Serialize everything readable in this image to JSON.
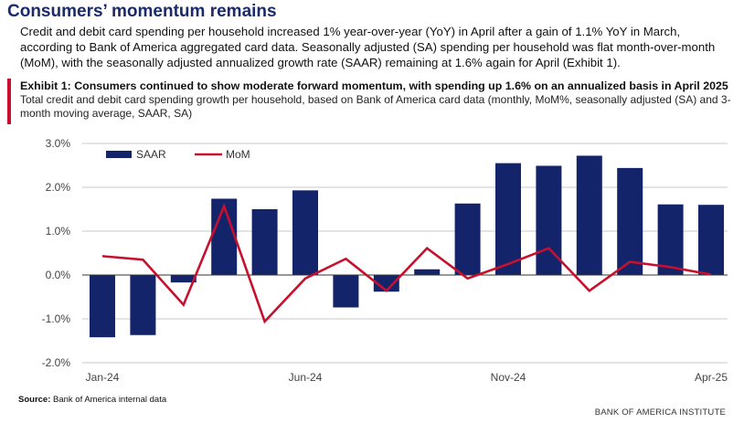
{
  "headline": "Consumers’ momentum remains",
  "intro": "Credit and debit card spending per household increased 1% year-over-year (YoY) in April after a gain of 1.1% YoY in March, according to Bank of America aggregated card data. Seasonally adjusted (SA) spending per household was flat month-over-month (MoM), with the seasonally adjusted annualized growth rate (SAAR) remaining at 1.6% again for April (Exhibit 1).",
  "exhibit": {
    "title": "Exhibit 1: Consumers continued to show moderate forward momentum, with spending up 1.6% on an annualized basis in April 2025",
    "subtitle": "Total credit and debit card spending growth per household, based on Bank of America card data (monthly, MoM%, seasonally adjusted (SA) and 3-month moving average, SAAR, SA)"
  },
  "source": {
    "label": "Source:",
    "text": " Bank of America internal data"
  },
  "brand": "BANK OF AMERICA INSTITUTE",
  "colors": {
    "saar": "#14246b",
    "mom": "#c8102e",
    "accent": "#c8102e",
    "headline": "#1b2a6b"
  },
  "chart_data": {
    "type": "bar",
    "categories": [
      "Jan-24",
      "Feb-24",
      "Mar-24",
      "Apr-24",
      "May-24",
      "Jun-24",
      "Jul-24",
      "Aug-24",
      "Sep-24",
      "Oct-24",
      "Nov-24",
      "Dec-24",
      "Jan-25",
      "Feb-25",
      "Mar-25",
      "Apr-25"
    ],
    "tick_labels": [
      "Jan-24",
      "Jun-24",
      "Nov-24",
      "Apr-25"
    ],
    "series": [
      {
        "name": "SAAR",
        "type": "bar",
        "color": "#14246b",
        "values": [
          -1.42,
          -1.37,
          -0.17,
          1.74,
          1.5,
          1.93,
          -0.74,
          -0.38,
          0.13,
          1.63,
          2.55,
          2.49,
          2.72,
          2.44,
          1.61,
          1.6
        ]
      },
      {
        "name": "MoM",
        "type": "line",
        "color": "#c8102e",
        "values": [
          0.43,
          0.35,
          -0.68,
          1.57,
          -1.06,
          -0.08,
          0.37,
          -0.36,
          0.61,
          -0.08,
          0.25,
          0.61,
          -0.36,
          0.3,
          0.18,
          0.01
        ]
      }
    ],
    "ylim": [
      -2.0,
      3.0
    ],
    "yticks": [
      -2.0,
      -1.0,
      0.0,
      1.0,
      2.0,
      3.0
    ],
    "ytick_labels": [
      "-2.0%",
      "-1.0%",
      "0.0%",
      "1.0%",
      "2.0%",
      "3.0%"
    ],
    "grid": true,
    "legend": "top-left"
  }
}
